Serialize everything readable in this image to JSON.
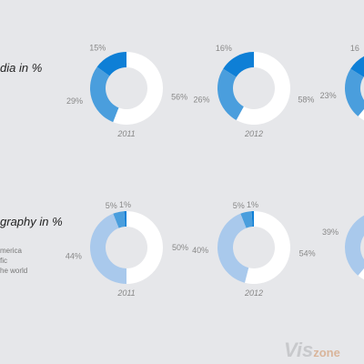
{
  "sections": [
    {
      "title": "dia in %",
      "legend": []
    },
    {
      "title": "graphy in %",
      "legend": [
        "merica",
        "fic",
        "he world"
      ]
    }
  ],
  "watermark": {
    "main": "Vis",
    "accent": "zone"
  },
  "colors": {
    "background": "#e6e7ea",
    "dark_blue": "#0e7fd6",
    "mid_blue": "#4a9edd",
    "light_blue": "#a9c9ec",
    "white": "#ffffff",
    "label": "#888888"
  },
  "chart_data": [
    {
      "type": "pie",
      "style": "donut",
      "section": 0,
      "year": "2011",
      "slices": [
        {
          "value": 15,
          "label": "15%",
          "color": "#0e7fd6"
        },
        {
          "value": 29,
          "label": "29%",
          "color": "#4a9edd"
        },
        {
          "value": 56,
          "label": "56%",
          "color": "#ffffff"
        }
      ]
    },
    {
      "type": "pie",
      "style": "donut",
      "section": 0,
      "year": "2012",
      "slices": [
        {
          "value": 16,
          "label": "16%",
          "color": "#0e7fd6"
        },
        {
          "value": 26,
          "label": "26%",
          "color": "#4a9edd"
        },
        {
          "value": 58,
          "label": "58%",
          "color": "#ffffff"
        }
      ]
    },
    {
      "type": "pie",
      "style": "donut",
      "section": 0,
      "year": "",
      "slices": [
        {
          "value": 16,
          "label": "16",
          "color": "#0e7fd6"
        },
        {
          "value": 23,
          "label": "23%",
          "color": "#4a9edd"
        },
        {
          "value": 61,
          "label": "",
          "color": "#ffffff"
        }
      ]
    },
    {
      "type": "pie",
      "style": "donut",
      "section": 1,
      "year": "2011",
      "slices": [
        {
          "value": 1,
          "label": "1%",
          "color": "#0e7fd6"
        },
        {
          "value": 5,
          "label": "5%",
          "color": "#4a9edd"
        },
        {
          "value": 44,
          "label": "44%",
          "color": "#a9c9ec"
        },
        {
          "value": 50,
          "label": "50%",
          "color": "#ffffff"
        }
      ]
    },
    {
      "type": "pie",
      "style": "donut",
      "section": 1,
      "year": "2012",
      "slices": [
        {
          "value": 1,
          "label": "1%",
          "color": "#0e7fd6"
        },
        {
          "value": 5,
          "label": "5%",
          "color": "#4a9edd"
        },
        {
          "value": 40,
          "label": "40%",
          "color": "#a9c9ec"
        },
        {
          "value": 54,
          "label": "54%",
          "color": "#ffffff"
        }
      ]
    },
    {
      "type": "pie",
      "style": "donut",
      "section": 1,
      "year": "",
      "slices": [
        {
          "value": 39,
          "label": "39%",
          "color": "#a9c9ec"
        },
        {
          "value": 61,
          "label": "",
          "color": "#ffffff"
        }
      ]
    }
  ]
}
